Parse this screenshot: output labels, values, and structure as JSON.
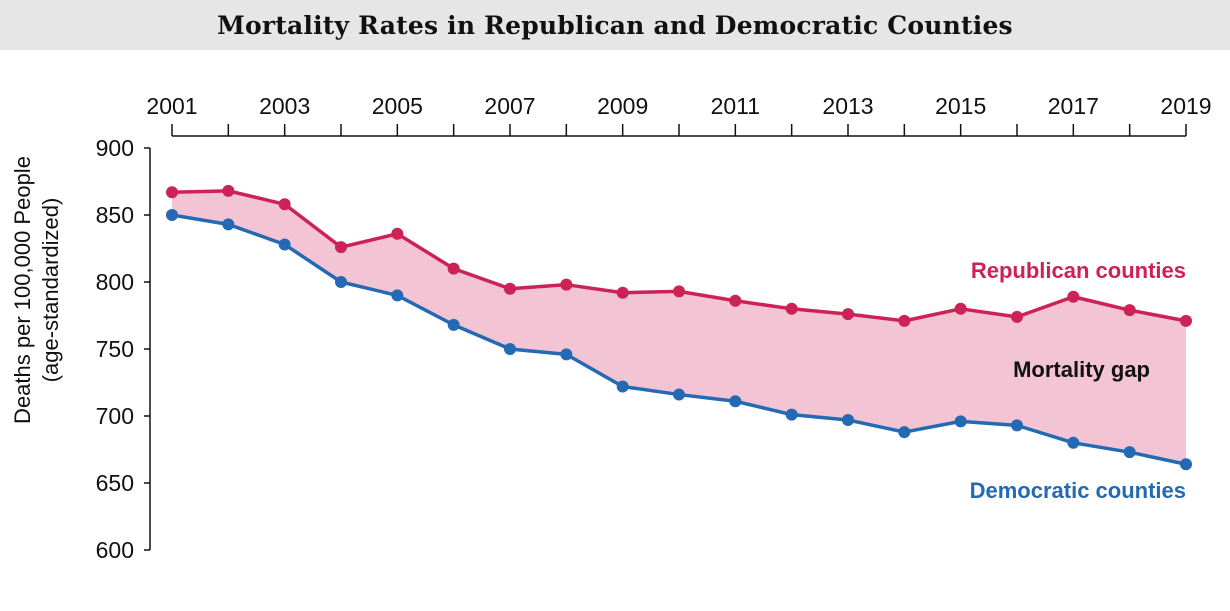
{
  "chart_data": {
    "type": "line",
    "title": "Mortality Rates in Republican and Democratic Counties",
    "xlabel": "",
    "ylabel": "Deaths per 100,000 People",
    "ylabel_sub": "(age-standardized)",
    "x": [
      2001,
      2002,
      2003,
      2004,
      2005,
      2006,
      2007,
      2008,
      2009,
      2010,
      2011,
      2012,
      2013,
      2014,
      2015,
      2016,
      2017,
      2018,
      2019
    ],
    "x_tick_labels": [
      "2001",
      "2003",
      "2005",
      "2007",
      "2009",
      "2011",
      "2013",
      "2015",
      "2017",
      "2019"
    ],
    "ylim": [
      600,
      900
    ],
    "y_ticks": [
      "600",
      "650",
      "700",
      "750",
      "800",
      "850",
      "900"
    ],
    "series": [
      {
        "name": "Republican counties",
        "color": "#cc2255",
        "values": [
          867,
          868,
          858,
          826,
          836,
          810,
          795,
          798,
          792,
          793,
          786,
          780,
          776,
          771,
          780,
          774,
          789,
          779,
          771
        ]
      },
      {
        "name": "Democratic counties",
        "color": "#2469b3",
        "values": [
          850,
          843,
          828,
          800,
          790,
          768,
          750,
          746,
          722,
          716,
          711,
          701,
          697,
          688,
          696,
          693,
          680,
          673,
          664
        ]
      }
    ],
    "fill_between": {
      "label": "Mortality gap",
      "color": "#f2c4d4"
    }
  }
}
